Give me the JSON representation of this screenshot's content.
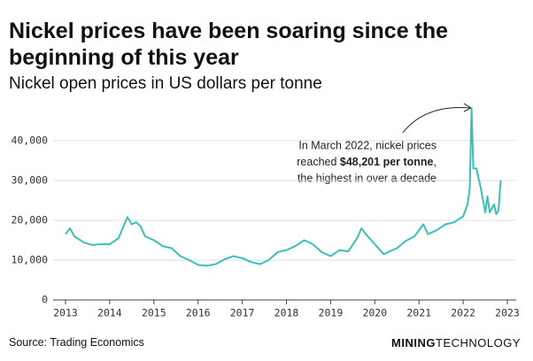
{
  "chart_data": {
    "type": "line",
    "title": "Nickel prices have been soaring since the beginning of this year",
    "subtitle": "Nickel open prices in US dollars per tonne",
    "source": "Source: Trading Economics",
    "brand": [
      "MINING",
      "TECHNOLOGY"
    ],
    "annotation": [
      "In March 2022, nickel prices",
      "reached ",
      "$48,201 per tonne",
      ",",
      "the highest in over a decade"
    ],
    "color": "#3cbfb8",
    "x": [
      2013.0,
      2013.1,
      2013.2,
      2013.4,
      2013.6,
      2013.8,
      2014.0,
      2014.2,
      2014.35,
      2014.4,
      2014.5,
      2014.6,
      2014.7,
      2014.8,
      2015.0,
      2015.2,
      2015.4,
      2015.6,
      2015.8,
      2016.0,
      2016.2,
      2016.4,
      2016.6,
      2016.8,
      2017.0,
      2017.2,
      2017.4,
      2017.6,
      2017.8,
      2018.0,
      2018.2,
      2018.4,
      2018.6,
      2018.8,
      2019.0,
      2019.2,
      2019.4,
      2019.6,
      2019.7,
      2019.8,
      2020.0,
      2020.2,
      2020.3,
      2020.5,
      2020.7,
      2020.9,
      2021.0,
      2021.1,
      2021.2,
      2021.4,
      2021.6,
      2021.8,
      2022.0,
      2022.1,
      2022.15,
      2022.19,
      2022.23,
      2022.3,
      2022.4,
      2022.5,
      2022.55,
      2022.6,
      2022.7,
      2022.75,
      2022.8,
      2022.85
    ],
    "values": [
      16500,
      18000,
      16000,
      14500,
      13800,
      14000,
      14000,
      15500,
      19500,
      20800,
      19000,
      19500,
      18500,
      16000,
      15000,
      13500,
      13000,
      11000,
      10000,
      8800,
      8600,
      9000,
      10200,
      11000,
      10500,
      9500,
      9000,
      10000,
      12000,
      12500,
      13500,
      15000,
      14000,
      12000,
      11000,
      12500,
      12200,
      15500,
      18000,
      16500,
      14000,
      11500,
      12000,
      13000,
      14800,
      16000,
      17500,
      19000,
      16500,
      17500,
      19000,
      19500,
      21000,
      24000,
      28000,
      48201,
      33000,
      33000,
      28000,
      22000,
      26000,
      22000,
      24000,
      21500,
      22500,
      30000
    ],
    "xlim": [
      2012.9,
      2023.2
    ],
    "xticks": [
      2013,
      2014,
      2015,
      2016,
      2017,
      2018,
      2019,
      2020,
      2021,
      2022,
      2023
    ],
    "ylim": [
      0,
      48201
    ],
    "yticks": [
      0,
      {
        "value": 10000,
        "label": "10,000"
      },
      {
        "value": 20000,
        "label": "20,000"
      },
      {
        "value": 30000,
        "label": "30,000"
      },
      {
        "value": 40000,
        "label": "40,000"
      }
    ],
    "grid": true
  }
}
